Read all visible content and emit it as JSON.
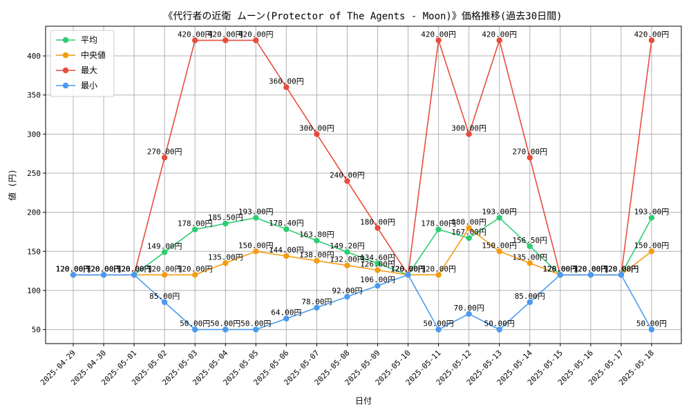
{
  "chart_data": {
    "type": "line",
    "title": "《代行者の近衛 ムーン(Protector of The Agents - Moon)》価格推移(過去30日間)",
    "xlabel": "日付",
    "ylabel": "値 (円)",
    "ylim": [
      32,
      438
    ],
    "yticks": [
      50,
      100,
      150,
      200,
      250,
      300,
      350,
      400
    ],
    "grid": true,
    "legend_position": "top-left",
    "label_suffix": "円",
    "categories": [
      "2025-04-29",
      "2025-04-30",
      "2025-05-01",
      "2025-05-02",
      "2025-05-03",
      "2025-05-04",
      "2025-05-05",
      "2025-05-06",
      "2025-05-07",
      "2025-05-08",
      "2025-05-09",
      "2025-05-10",
      "2025-05-11",
      "2025-05-12",
      "2025-05-13",
      "2025-05-14",
      "2025-05-15",
      "2025-05-16",
      "2025-05-17",
      "2025-05-18"
    ],
    "series": [
      {
        "name": "平均",
        "color": "#2ecc71",
        "values": [
          120,
          120,
          120,
          149,
          178,
          185.5,
          193,
          178.4,
          163.8,
          149.2,
          134.6,
          120,
          178,
          167,
          193,
          156.5,
          120,
          120,
          120,
          193
        ]
      },
      {
        "name": "中央値",
        "color": "#f39c12",
        "values": [
          120,
          120,
          120,
          120,
          120,
          135,
          150,
          144,
          138,
          132,
          126,
          120,
          120,
          180,
          150,
          135,
          120,
          120,
          120,
          150
        ]
      },
      {
        "name": "最大",
        "color": "#e74c3c",
        "values": [
          120,
          120,
          120,
          270,
          420,
          420,
          420,
          360,
          300,
          240,
          180,
          120,
          420,
          300,
          420,
          270,
          120,
          120,
          120,
          420
        ]
      },
      {
        "name": "最小",
        "color": "#4a9af0",
        "values": [
          120,
          120,
          120,
          85,
          50,
          50,
          50,
          64,
          78,
          92,
          106,
          120,
          50,
          70,
          50,
          85,
          120,
          120,
          120,
          50
        ]
      }
    ]
  }
}
